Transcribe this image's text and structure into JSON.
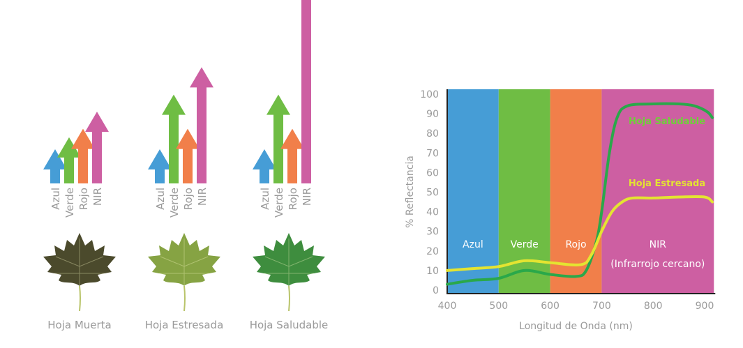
{
  "colors": {
    "azul": "#469dd6",
    "verde": "#6fbd44",
    "rojo": "#f17f4a",
    "nir": "#cd5fa2",
    "healthy": "#2aa84a",
    "stressed": "#e4e431",
    "text": "#9a9a9a"
  },
  "bands": [
    "Azul",
    "Verde",
    "Rojo",
    "NIR"
  ],
  "leaves": [
    {
      "label": "Hoja Muerta",
      "color": "#4b4a2c",
      "levels": {
        "Azul": 1,
        "Verde": 1.35,
        "Rojo": 1.6,
        "NIR": 2.1
      }
    },
    {
      "label": "Hoja Estresada",
      "color": "#86a343",
      "levels": {
        "Azul": 1,
        "Verde": 2.6,
        "Rojo": 1.6,
        "NIR": 3.4
      }
    },
    {
      "label": "Hoja Saludable",
      "color": "#3e8d3e",
      "levels": {
        "Azul": 1,
        "Verde": 2.6,
        "Rojo": 1.6,
        "NIR": 6.4
      }
    }
  ],
  "chart_data": {
    "type": "line",
    "xlabel": "Longitud de Onda (nm)",
    "ylabel": "% Reflectancia",
    "xlim": [
      400,
      918
    ],
    "ylim": [
      0,
      100
    ],
    "xticks": [
      400,
      500,
      600,
      700,
      800,
      900
    ],
    "yticks": [
      0,
      10,
      20,
      30,
      40,
      50,
      60,
      70,
      80,
      90,
      100
    ],
    "regions": [
      {
        "label": "Azul",
        "from": 400,
        "to": 500,
        "color": "#469dd6"
      },
      {
        "label": "Verde",
        "from": 500,
        "to": 600,
        "color": "#6fbd44"
      },
      {
        "label": "Rojo",
        "from": 600,
        "to": 700,
        "color": "#f17f4a"
      },
      {
        "label": "NIR",
        "sublabel": "(Infrarrojo cercano)",
        "from": 700,
        "to": 918,
        "color": "#cd5fa2"
      }
    ],
    "series": [
      {
        "name": "Hoja Saludable",
        "color": "#2aa84a",
        "x": [
          400,
          450,
          500,
          550,
          600,
          650,
          670,
          690,
          700,
          715,
          730,
          750,
          800,
          850,
          880,
          905,
          915
        ],
        "y": [
          3,
          5,
          6,
          10,
          8,
          7,
          10,
          25,
          40,
          70,
          88,
          94,
          95,
          95,
          94,
          91,
          88
        ]
      },
      {
        "name": "Hoja Estresada",
        "color": "#e4e431",
        "x": [
          400,
          450,
          500,
          550,
          600,
          660,
          680,
          700,
          720,
          740,
          760,
          800,
          850,
          900,
          915
        ],
        "y": [
          10,
          11,
          12,
          15,
          14,
          13,
          18,
          30,
          40,
          45,
          47,
          47,
          47.5,
          47.5,
          45
        ]
      }
    ]
  }
}
